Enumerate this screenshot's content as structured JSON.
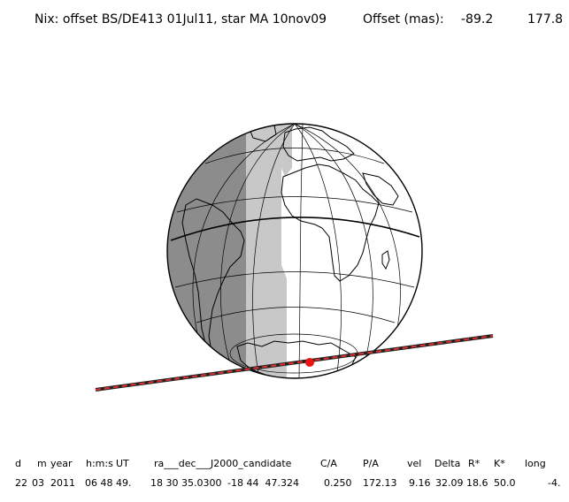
{
  "header": {
    "title": "Nix: offset BS/DE413 01Jul11, star MA 10nov09",
    "offset_label": "Offset (mas):",
    "offset_x": "-89.2",
    "offset_y": "177.8"
  },
  "colors": {
    "night_dark": "#8c8c8c",
    "twilight": "#c8c8c8",
    "day": "#ffffff",
    "track_line": "#222222",
    "track_dash": "#e03030",
    "closest_point": "#ee1111"
  },
  "table": {
    "headers": [
      "d",
      "m",
      "year",
      "h:m:s",
      "UT",
      "ra___dec___J2000_candidate",
      "C/A",
      "P/A",
      "vel",
      "Delta",
      "R*",
      "K*",
      "long"
    ],
    "values": [
      "22",
      "03",
      "2011",
      "06 48 49.",
      "18 30 35.0300",
      "-18 44  47.324",
      "0.250",
      "172.13",
      "9.16",
      "32.09",
      "18.6",
      "50.0",
      "-4."
    ]
  }
}
